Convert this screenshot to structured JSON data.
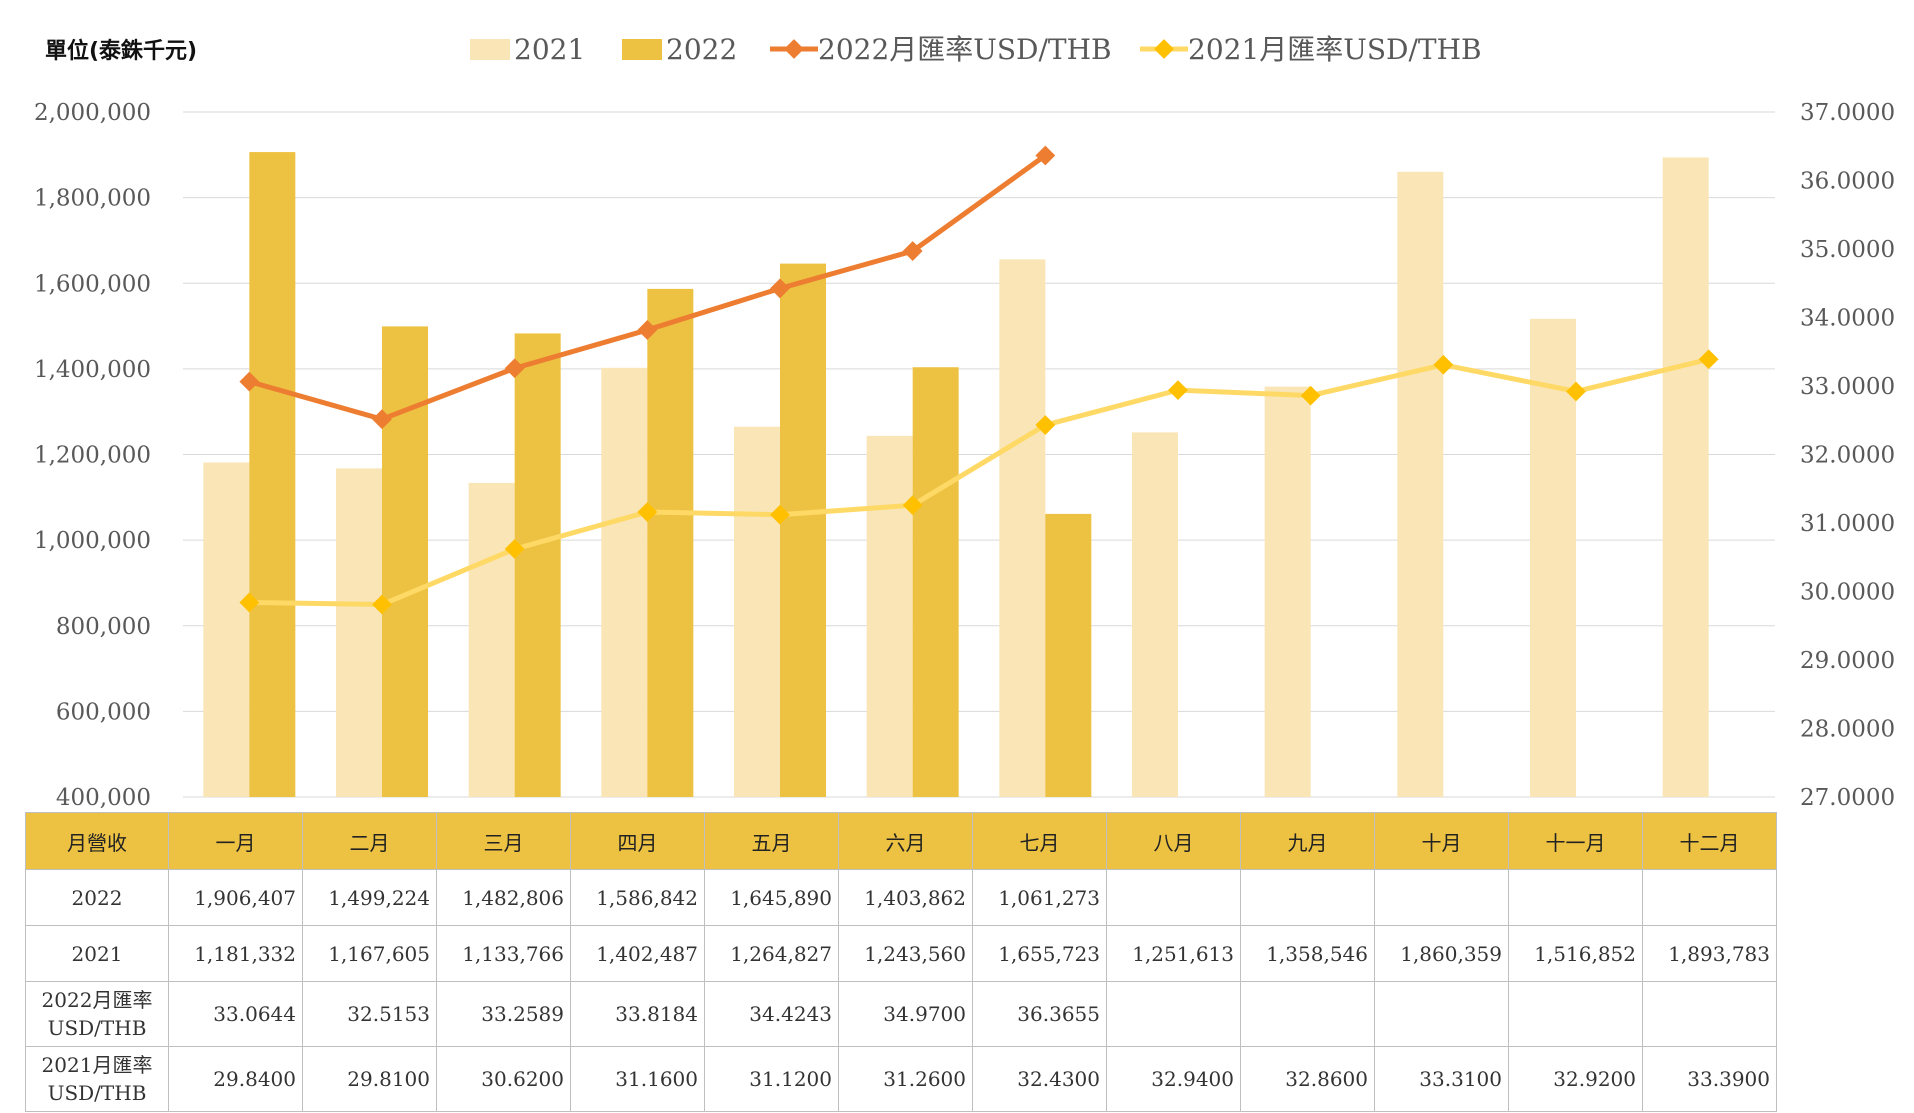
{
  "unit_label": "單位(泰銖千元)",
  "chart_data": {
    "type": "bar",
    "categories": [
      "一月",
      "二月",
      "三月",
      "四月",
      "五月",
      "六月",
      "七月",
      "八月",
      "九月",
      "十月",
      "十一月",
      "十二月"
    ],
    "series": [
      {
        "name": "2021",
        "kind": "bar",
        "axis": "left",
        "color": "#f9e5b5",
        "values": [
          1181332,
          1167605,
          1133766,
          1402487,
          1264827,
          1243560,
          1655723,
          1251613,
          1358546,
          1860359,
          1516852,
          1893783
        ]
      },
      {
        "name": "2022",
        "kind": "bar",
        "axis": "left",
        "color": "#edc243",
        "values": [
          1906407,
          1499224,
          1482806,
          1586842,
          1645890,
          1403862,
          1061273,
          null,
          null,
          null,
          null,
          null
        ]
      },
      {
        "name": "2022月匯率USD/THB",
        "kind": "line",
        "axis": "right",
        "color": "#ed7d31",
        "marker_color": "#ed7d31",
        "values": [
          33.0644,
          32.5153,
          33.2589,
          33.8184,
          34.4243,
          34.97,
          36.3655,
          null,
          null,
          null,
          null,
          null
        ]
      },
      {
        "name": "2021月匯率USD/THB",
        "kind": "line",
        "axis": "right",
        "color": "#ffd966",
        "marker_color": "#ffc000",
        "values": [
          29.84,
          29.81,
          30.62,
          31.16,
          31.12,
          31.26,
          32.43,
          32.94,
          32.86,
          33.31,
          32.92,
          33.39
        ]
      }
    ],
    "y_left": {
      "min": 400000,
      "max": 2000000,
      "step": 200000,
      "ticks": [
        "2,000,000",
        "1,800,000",
        "1,600,000",
        "1,400,000",
        "1,200,000",
        "1,000,000",
        "800,000",
        "600,000",
        "400,000"
      ]
    },
    "y_right": {
      "min": 27,
      "max": 37,
      "step": 1,
      "ticks": [
        "37.0000",
        "36.0000",
        "35.0000",
        "34.0000",
        "33.0000",
        "32.0000",
        "31.0000",
        "30.0000",
        "29.0000",
        "28.0000",
        "27.0000"
      ]
    },
    "grid": true,
    "legend_position": "top"
  },
  "table": {
    "header": [
      "月營收",
      "一月",
      "二月",
      "三月",
      "四月",
      "五月",
      "六月",
      "七月",
      "八月",
      "九月",
      "十月",
      "十一月",
      "十二月"
    ],
    "rows": [
      {
        "label": "2022",
        "cells": [
          "1,906,407",
          "1,499,224",
          "1,482,806",
          "1,586,842",
          "1,645,890",
          "1,403,862",
          "1,061,273",
          "",
          "",
          "",
          "",
          ""
        ]
      },
      {
        "label": "2021",
        "cells": [
          "1,181,332",
          "1,167,605",
          "1,133,766",
          "1,402,487",
          "1,264,827",
          "1,243,560",
          "1,655,723",
          "1,251,613",
          "1,358,546",
          "1,860,359",
          "1,516,852",
          "1,893,783"
        ]
      },
      {
        "label": "2022月匯率USD/THB",
        "cells": [
          "33.0644",
          "32.5153",
          "33.2589",
          "33.8184",
          "34.4243",
          "34.9700",
          "36.3655",
          "",
          "",
          "",
          "",
          ""
        ]
      },
      {
        "label": "2021月匯率USD/THB",
        "cells": [
          "29.8400",
          "29.8100",
          "30.6200",
          "31.1600",
          "31.1200",
          "31.2600",
          "32.4300",
          "32.9400",
          "32.8600",
          "33.3100",
          "32.9200",
          "33.3900"
        ]
      }
    ]
  }
}
